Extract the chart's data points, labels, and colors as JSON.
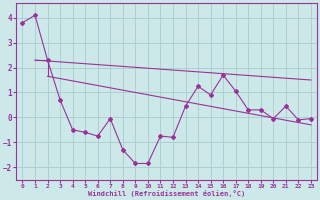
{
  "xlabel": "Windchill (Refroidissement éolien,°C)",
  "background_color": "#cce8e8",
  "grid_color": "#aacccc",
  "line_color": "#993399",
  "xlim": [
    -0.5,
    23.5
  ],
  "ylim": [
    -2.5,
    4.6
  ],
  "yticks": [
    -2,
    -1,
    0,
    1,
    2,
    3,
    4
  ],
  "xticks": [
    0,
    1,
    2,
    3,
    4,
    5,
    6,
    7,
    8,
    9,
    10,
    11,
    12,
    13,
    14,
    15,
    16,
    17,
    18,
    19,
    20,
    21,
    22,
    23
  ],
  "series1_x": [
    0,
    1,
    2,
    3,
    4,
    5,
    6,
    7,
    8,
    9,
    10,
    11,
    12,
    13,
    14,
    15,
    16,
    17,
    18,
    19,
    20,
    21,
    22,
    23
  ],
  "series1_y": [
    3.8,
    4.1,
    2.3,
    0.7,
    -0.5,
    -0.6,
    -0.75,
    -0.05,
    -1.3,
    -1.85,
    -1.85,
    -0.75,
    -0.8,
    0.45,
    1.25,
    0.9,
    1.7,
    1.05,
    0.3,
    0.3,
    -0.05,
    0.45,
    -0.1,
    -0.05
  ],
  "series3_x": [
    1,
    2,
    23
  ],
  "series3_y": [
    2.3,
    2.3,
    1.5
  ],
  "series4_x": [
    1,
    2,
    23
  ],
  "series4_y": [
    2.3,
    1.65,
    1.5
  ],
  "series5_x": [
    2,
    23
  ],
  "series5_y": [
    1.65,
    -0.3
  ]
}
